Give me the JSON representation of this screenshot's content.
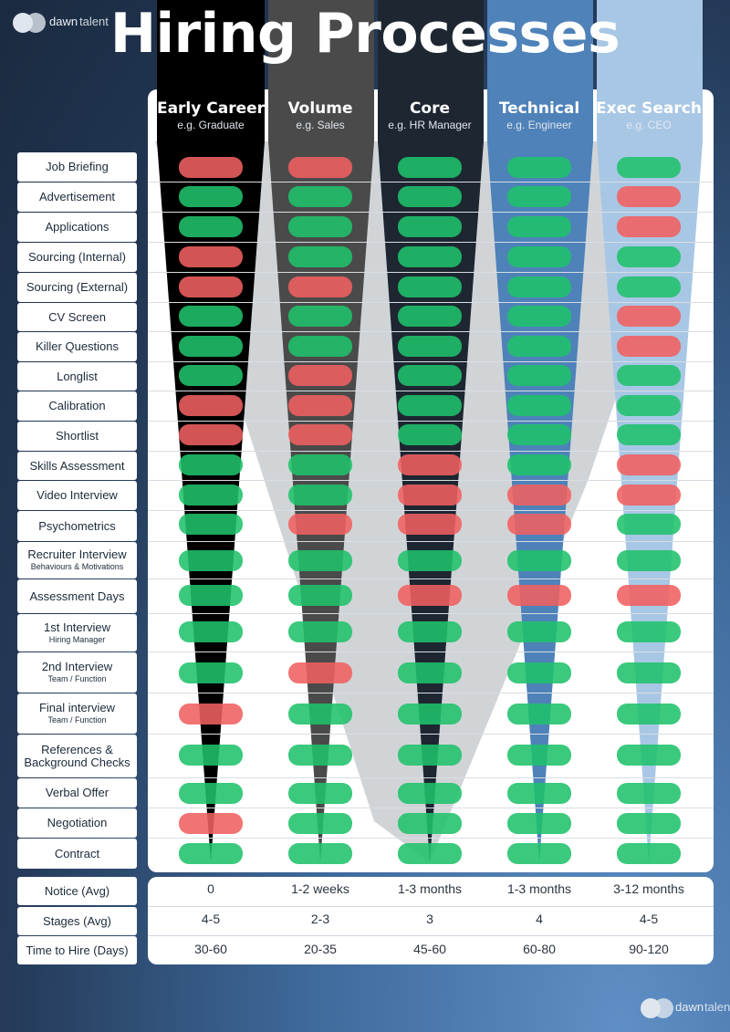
{
  "title": "Hiring Processes",
  "logo": {
    "part1": "dawn",
    "part2": "talent"
  },
  "colors": {
    "required": "#1fc16b",
    "not_required": "#f06060"
  },
  "columns": [
    {
      "name": "Early Career",
      "example": "e.g. Graduate"
    },
    {
      "name": "Volume",
      "example": "e.g. Sales"
    },
    {
      "name": "Core",
      "example": "e.g. HR Manager"
    },
    {
      "name": "Technical",
      "example": "e.g. Engineer"
    },
    {
      "name": "Exec Search",
      "example": "e.g. CEO"
    }
  ],
  "stages": [
    {
      "label": "Job Briefing",
      "sub": "",
      "values": [
        0,
        0,
        1,
        1,
        1
      ]
    },
    {
      "label": "Advertisement",
      "sub": "",
      "values": [
        1,
        1,
        1,
        1,
        0
      ]
    },
    {
      "label": "Applications",
      "sub": "",
      "values": [
        1,
        1,
        1,
        1,
        0
      ]
    },
    {
      "label": "Sourcing (Internal)",
      "sub": "",
      "values": [
        0,
        1,
        1,
        1,
        1
      ]
    },
    {
      "label": "Sourcing (External)",
      "sub": "",
      "values": [
        0,
        0,
        1,
        1,
        1
      ]
    },
    {
      "label": "CV Screen",
      "sub": "",
      "values": [
        1,
        1,
        1,
        1,
        0
      ]
    },
    {
      "label": "Killer Questions",
      "sub": "",
      "values": [
        1,
        1,
        1,
        1,
        0
      ]
    },
    {
      "label": "Longlist",
      "sub": "",
      "values": [
        1,
        0,
        1,
        1,
        1
      ]
    },
    {
      "label": "Calibration",
      "sub": "",
      "values": [
        0,
        0,
        1,
        1,
        1
      ]
    },
    {
      "label": "Shortlist",
      "sub": "",
      "values": [
        0,
        0,
        1,
        1,
        1
      ]
    },
    {
      "label": "Skills Assessment",
      "sub": "",
      "values": [
        1,
        1,
        0,
        1,
        0
      ]
    },
    {
      "label": "Video Interview",
      "sub": "",
      "values": [
        1,
        1,
        0,
        0,
        0
      ]
    },
    {
      "label": "Psychometrics",
      "sub": "",
      "values": [
        1,
        0,
        0,
        0,
        1
      ]
    },
    {
      "label": "Recruiter Interview",
      "sub": "Behaviours & Motivations",
      "values": [
        1,
        1,
        1,
        1,
        1
      ]
    },
    {
      "label": "Assessment Days",
      "sub": "",
      "values": [
        1,
        1,
        0,
        0,
        0
      ]
    },
    {
      "label": "1st Interview",
      "sub": "Hiring Manager",
      "values": [
        1,
        1,
        1,
        1,
        1
      ]
    },
    {
      "label": "2nd Interview",
      "sub": "Team / Function",
      "values": [
        1,
        0,
        1,
        1,
        1
      ]
    },
    {
      "label": "Final interview",
      "sub": "Team / Function",
      "values": [
        0,
        1,
        1,
        1,
        1
      ]
    },
    {
      "label": "References &",
      "sub": "Background Checks",
      "values": [
        1,
        1,
        1,
        1,
        1
      ]
    },
    {
      "label": "Verbal Offer",
      "sub": "",
      "values": [
        1,
        1,
        1,
        1,
        1
      ]
    },
    {
      "label": "Negotiation",
      "sub": "",
      "values": [
        0,
        1,
        1,
        1,
        1
      ]
    },
    {
      "label": "Contract",
      "sub": "",
      "values": [
        1,
        1,
        1,
        1,
        1
      ]
    }
  ],
  "summary": [
    {
      "label": "Notice (Avg)",
      "values": [
        "0",
        "1-2 weeks",
        "1-3 months",
        "1-3 months",
        "3-12 months"
      ]
    },
    {
      "label": "Stages (Avg)",
      "values": [
        "4-5",
        "2-3",
        "3",
        "4",
        "4-5"
      ]
    },
    {
      "label": "Time to Hire (Days)",
      "values": [
        "30-60",
        "20-35",
        "45-60",
        "60-80",
        "90-120"
      ]
    }
  ]
}
